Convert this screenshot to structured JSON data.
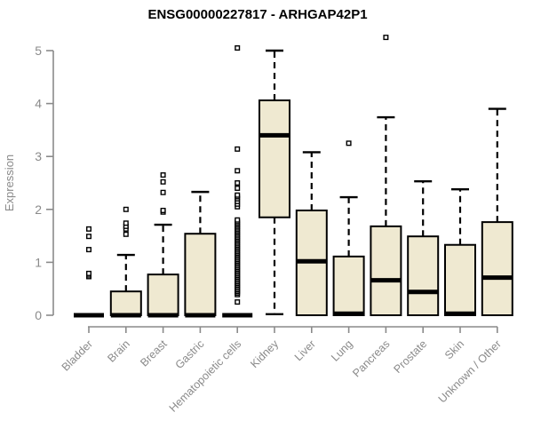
{
  "title": "ENSG00000227817 - ARHGAP42P1",
  "chart_data": {
    "type": "boxplot",
    "title": "ENSG00000227817 - ARHGAP42P1",
    "ylabel": "Expression",
    "ylim": [
      0,
      5
    ],
    "yticks": [
      0,
      1,
      2,
      3,
      4,
      5
    ],
    "grid": false,
    "legend": "none",
    "axis_color": "#8a8a8a",
    "box_fill": "#efe9d1",
    "box_border": "#000000",
    "outlier_shape": "open-square",
    "categories": [
      "Bladder",
      "Brain",
      "Breast",
      "Gastric",
      "Hematopoietic cells",
      "Kidney",
      "Liver",
      "Lung",
      "Pancreas",
      "Prostate",
      "Skin",
      "Unknown / Other"
    ],
    "series": [
      {
        "category": "Bladder",
        "slug": "bladder",
        "whisker_low": 0,
        "q1": 0,
        "median": 0,
        "q3": 0,
        "whisker_high": 0,
        "outliers": [
          0.73,
          0.76,
          0.79,
          1.24,
          1.49,
          1.63
        ]
      },
      {
        "category": "Brain",
        "slug": "brain",
        "whisker_low": 0,
        "q1": 0,
        "median": 0,
        "q3": 0.45,
        "whisker_high": 1.14,
        "outliers": [
          1.53,
          1.63,
          1.68,
          1.74,
          2.0
        ]
      },
      {
        "category": "Breast",
        "slug": "breast",
        "whisker_low": 0,
        "q1": 0,
        "median": 0,
        "q3": 0.77,
        "whisker_high": 1.71,
        "outliers": [
          1.95,
          1.98,
          2.32,
          2.52,
          2.65
        ]
      },
      {
        "category": "Gastric",
        "slug": "gastric",
        "whisker_low": 0,
        "q1": 0,
        "median": 0,
        "q3": 1.54,
        "whisker_high": 2.33,
        "outliers": []
      },
      {
        "category": "Hematopoietic cells",
        "slug": "hematopoietic-cells",
        "whisker_low": 0,
        "q1": 0,
        "median": 0,
        "q3": 0,
        "whisker_high": 0,
        "outliers": [
          0.25,
          0.39,
          0.42,
          0.45,
          0.48,
          0.51,
          0.54,
          0.57,
          0.6,
          0.63,
          0.66,
          0.69,
          0.72,
          0.75,
          0.78,
          0.81,
          0.84,
          0.87,
          0.9,
          0.93,
          0.96,
          0.99,
          1.02,
          1.05,
          1.08,
          1.11,
          1.14,
          1.17,
          1.2,
          1.23,
          1.26,
          1.29,
          1.32,
          1.35,
          1.38,
          1.41,
          1.44,
          1.47,
          1.5,
          1.53,
          1.56,
          1.59,
          1.62,
          1.65,
          1.68,
          1.71,
          1.74,
          1.77,
          1.8,
          2.05,
          2.1,
          2.15,
          2.2,
          2.24,
          2.27,
          2.4,
          2.5,
          2.73,
          3.14,
          5.05
        ]
      },
      {
        "category": "Kidney",
        "slug": "kidney",
        "whisker_low": 0.02,
        "q1": 1.85,
        "median": 3.4,
        "q3": 4.06,
        "whisker_high": 5.0,
        "outliers": []
      },
      {
        "category": "Liver",
        "slug": "liver",
        "whisker_low": 0,
        "q1": 0,
        "median": 1.02,
        "q3": 1.98,
        "whisker_high": 3.08,
        "outliers": []
      },
      {
        "category": "Lung",
        "slug": "lung",
        "whisker_low": 0,
        "q1": 0,
        "median": 0.03,
        "q3": 1.11,
        "whisker_high": 2.23,
        "outliers": [
          3.25
        ]
      },
      {
        "category": "Pancreas",
        "slug": "pancreas",
        "whisker_low": 0,
        "q1": 0,
        "median": 0.66,
        "q3": 1.68,
        "whisker_high": 3.74,
        "outliers": [
          5.25
        ]
      },
      {
        "category": "Prostate",
        "slug": "prostate",
        "whisker_low": 0,
        "q1": 0,
        "median": 0.44,
        "q3": 1.49,
        "whisker_high": 2.53,
        "outliers": []
      },
      {
        "category": "Skin",
        "slug": "skin",
        "whisker_low": 0,
        "q1": 0,
        "median": 0.03,
        "q3": 1.33,
        "whisker_high": 2.38,
        "outliers": []
      },
      {
        "category": "Unknown / Other",
        "slug": "unknown-other",
        "whisker_low": 0,
        "q1": 0,
        "median": 0.71,
        "q3": 1.76,
        "whisker_high": 3.9,
        "outliers": []
      }
    ]
  }
}
